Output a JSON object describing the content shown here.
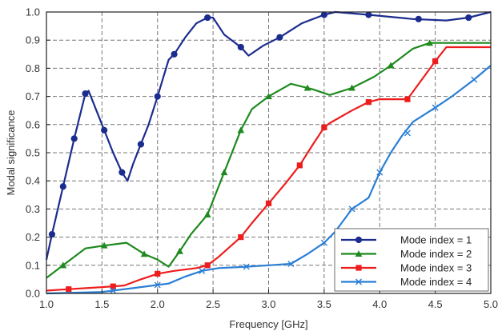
{
  "chart_data": {
    "type": "line",
    "xlabel": "Frequency [GHz]",
    "ylabel": "Modal significance",
    "xlim": [
      1.0,
      5.0
    ],
    "ylim": [
      0.0,
      1.0
    ],
    "xticks": [
      "1.0",
      "1.5",
      "2.0",
      "2.5",
      "3.0",
      "3.5",
      "4.0",
      "4.5",
      "5.0"
    ],
    "yticks": [
      "0.0",
      "0.1",
      "0.2",
      "0.3",
      "0.4",
      "0.5",
      "0.6",
      "0.7",
      "0.8",
      "0.9",
      "1.0"
    ],
    "grid": true,
    "legend_position": "bottom-right",
    "series": [
      {
        "name": "Mode index = 1",
        "color": "#1b2c8f",
        "marker": "circle",
        "points": [
          [
            1.0,
            0.12
          ],
          [
            1.05,
            0.21
          ],
          [
            1.15,
            0.38
          ],
          [
            1.25,
            0.55
          ],
          [
            1.35,
            0.71
          ],
          [
            1.38,
            0.72
          ],
          [
            1.45,
            0.65
          ],
          [
            1.52,
            0.58
          ],
          [
            1.6,
            0.5
          ],
          [
            1.68,
            0.43
          ],
          [
            1.73,
            0.4
          ],
          [
            1.78,
            0.46
          ],
          [
            1.85,
            0.53
          ],
          [
            1.92,
            0.6
          ],
          [
            2.0,
            0.7
          ],
          [
            2.1,
            0.83
          ],
          [
            2.15,
            0.85
          ],
          [
            2.25,
            0.91
          ],
          [
            2.35,
            0.96
          ],
          [
            2.45,
            0.98
          ],
          [
            2.5,
            0.98
          ],
          [
            2.6,
            0.92
          ],
          [
            2.75,
            0.875
          ],
          [
            2.82,
            0.845
          ],
          [
            2.95,
            0.88
          ],
          [
            3.1,
            0.91
          ],
          [
            3.3,
            0.96
          ],
          [
            3.5,
            0.99
          ],
          [
            3.6,
            1.0
          ],
          [
            3.9,
            0.99
          ],
          [
            4.3,
            0.975
          ],
          [
            4.6,
            0.97
          ],
          [
            4.8,
            0.98
          ],
          [
            5.0,
            1.0
          ]
        ],
        "markers_at": [
          [
            1.05,
            0.21
          ],
          [
            1.15,
            0.38
          ],
          [
            1.25,
            0.55
          ],
          [
            1.35,
            0.71
          ],
          [
            1.52,
            0.58
          ],
          [
            1.68,
            0.43
          ],
          [
            1.85,
            0.53
          ],
          [
            2.0,
            0.7
          ],
          [
            2.15,
            0.85
          ],
          [
            2.45,
            0.98
          ],
          [
            2.75,
            0.875
          ],
          [
            3.1,
            0.91
          ],
          [
            3.5,
            0.99
          ],
          [
            3.9,
            0.99
          ],
          [
            4.35,
            0.975
          ],
          [
            4.8,
            0.98
          ]
        ]
      },
      {
        "name": "Mode index = 2",
        "color": "#1e8a1e",
        "marker": "triangle",
        "points": [
          [
            1.0,
            0.055
          ],
          [
            1.15,
            0.1
          ],
          [
            1.35,
            0.16
          ],
          [
            1.52,
            0.17
          ],
          [
            1.72,
            0.18
          ],
          [
            1.88,
            0.14
          ],
          [
            2.0,
            0.12
          ],
          [
            2.1,
            0.095
          ],
          [
            2.2,
            0.15
          ],
          [
            2.3,
            0.21
          ],
          [
            2.45,
            0.28
          ],
          [
            2.6,
            0.43
          ],
          [
            2.75,
            0.58
          ],
          [
            2.85,
            0.655
          ],
          [
            3.0,
            0.7
          ],
          [
            3.2,
            0.745
          ],
          [
            3.4,
            0.725
          ],
          [
            3.55,
            0.705
          ],
          [
            3.75,
            0.73
          ],
          [
            3.95,
            0.77
          ],
          [
            4.1,
            0.81
          ],
          [
            4.3,
            0.87
          ],
          [
            4.45,
            0.89
          ],
          [
            4.55,
            0.89
          ],
          [
            5.0,
            0.89
          ]
        ],
        "markers_at": [
          [
            1.15,
            0.1
          ],
          [
            1.52,
            0.17
          ],
          [
            1.88,
            0.14
          ],
          [
            2.2,
            0.15
          ],
          [
            2.45,
            0.28
          ],
          [
            2.6,
            0.43
          ],
          [
            2.75,
            0.58
          ],
          [
            3.0,
            0.7
          ],
          [
            3.35,
            0.73
          ],
          [
            3.75,
            0.73
          ],
          [
            4.1,
            0.81
          ],
          [
            4.45,
            0.89
          ]
        ]
      },
      {
        "name": "Mode index = 3",
        "color": "#ee1c1c",
        "marker": "square",
        "points": [
          [
            1.0,
            0.01
          ],
          [
            1.2,
            0.015
          ],
          [
            1.4,
            0.02
          ],
          [
            1.6,
            0.025
          ],
          [
            1.7,
            0.028
          ],
          [
            1.85,
            0.05
          ],
          [
            2.0,
            0.07
          ],
          [
            2.15,
            0.08
          ],
          [
            2.35,
            0.09
          ],
          [
            2.45,
            0.1
          ],
          [
            2.55,
            0.13
          ],
          [
            2.75,
            0.2
          ],
          [
            2.85,
            0.25
          ],
          [
            3.0,
            0.32
          ],
          [
            3.15,
            0.39
          ],
          [
            3.28,
            0.455
          ],
          [
            3.4,
            0.53
          ],
          [
            3.5,
            0.59
          ],
          [
            3.55,
            0.605
          ],
          [
            3.75,
            0.65
          ],
          [
            3.9,
            0.68
          ],
          [
            4.0,
            0.69
          ],
          [
            4.25,
            0.69
          ],
          [
            4.5,
            0.825
          ],
          [
            4.6,
            0.875
          ],
          [
            5.0,
            0.875
          ]
        ],
        "markers_at": [
          [
            1.2,
            0.015
          ],
          [
            1.6,
            0.025
          ],
          [
            2.0,
            0.07
          ],
          [
            2.45,
            0.1
          ],
          [
            2.75,
            0.2
          ],
          [
            3.0,
            0.32
          ],
          [
            3.28,
            0.455
          ],
          [
            3.5,
            0.59
          ],
          [
            3.9,
            0.68
          ],
          [
            4.25,
            0.69
          ],
          [
            4.5,
            0.825
          ]
        ]
      },
      {
        "name": "Mode index = 4",
        "color": "#2a7fd6",
        "marker": "x",
        "points": [
          [
            1.0,
            0.0
          ],
          [
            1.5,
            0.005
          ],
          [
            1.8,
            0.02
          ],
          [
            2.0,
            0.03
          ],
          [
            2.1,
            0.035
          ],
          [
            2.25,
            0.06
          ],
          [
            2.4,
            0.08
          ],
          [
            2.55,
            0.09
          ],
          [
            2.8,
            0.095
          ],
          [
            3.0,
            0.1
          ],
          [
            3.2,
            0.105
          ],
          [
            3.35,
            0.14
          ],
          [
            3.5,
            0.18
          ],
          [
            3.6,
            0.22
          ],
          [
            3.75,
            0.3
          ],
          [
            3.9,
            0.34
          ],
          [
            4.0,
            0.43
          ],
          [
            4.1,
            0.5
          ],
          [
            4.2,
            0.56
          ],
          [
            4.3,
            0.61
          ],
          [
            4.5,
            0.66
          ],
          [
            4.65,
            0.7
          ],
          [
            4.85,
            0.76
          ],
          [
            5.0,
            0.81
          ]
        ],
        "markers_at": [
          [
            1.6,
            0.01
          ],
          [
            2.0,
            0.03
          ],
          [
            2.4,
            0.08
          ],
          [
            2.8,
            0.095
          ],
          [
            3.2,
            0.105
          ],
          [
            3.5,
            0.18
          ],
          [
            3.75,
            0.3
          ],
          [
            4.0,
            0.43
          ],
          [
            4.25,
            0.57
          ],
          [
            4.5,
            0.66
          ],
          [
            4.85,
            0.76
          ]
        ]
      }
    ]
  }
}
